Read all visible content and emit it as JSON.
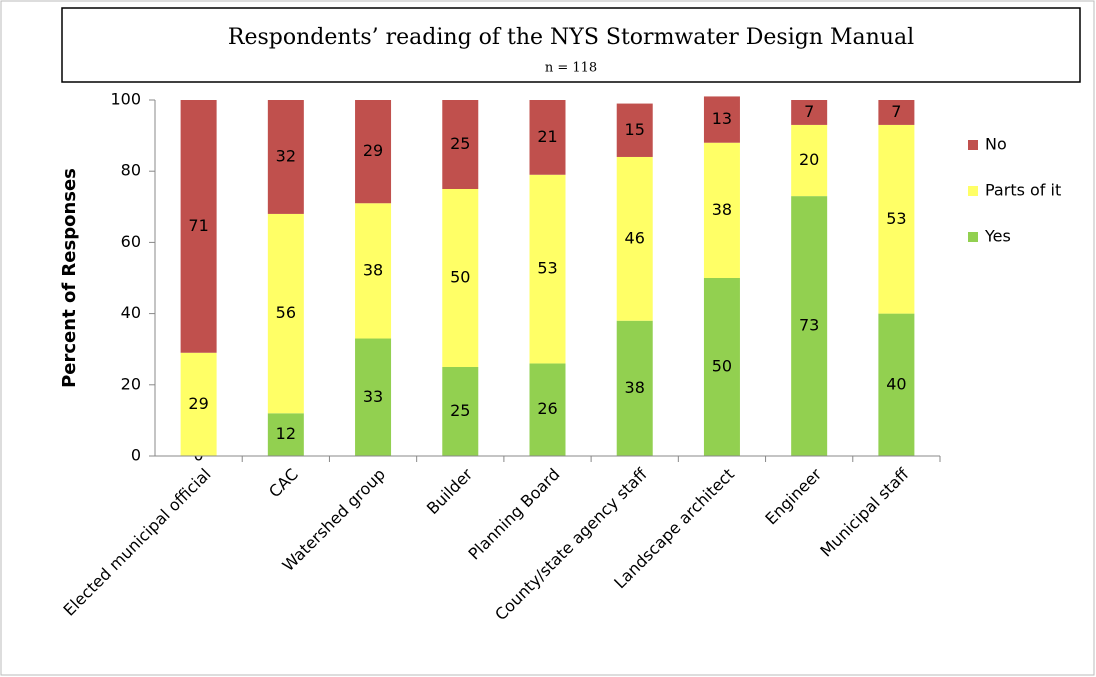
{
  "chart_data": {
    "type": "stacked_bar",
    "title": "Respondents’ reading of the NYS Stormwater Design Manual",
    "subtitle": "n = 118",
    "y_label": "Percent of Responses",
    "categories": [
      "Elected municipal official",
      "CAC",
      "Watershed group",
      "Builder",
      "Planning Board",
      "County/state agency staff",
      "Landscape architect",
      "Engineer",
      "Municipal staff"
    ],
    "series": [
      {
        "name": "Yes",
        "color": "#92d050",
        "values": [
          0,
          12,
          33,
          25,
          26,
          38,
          50,
          73,
          40
        ]
      },
      {
        "name": "Parts of it",
        "color": "#ffff66",
        "values": [
          29,
          56,
          38,
          50,
          53,
          46,
          38,
          20,
          53
        ]
      },
      {
        "name": "No",
        "color": "#c0504d",
        "values": [
          71,
          32,
          29,
          25,
          21,
          15,
          13,
          7,
          7
        ]
      }
    ],
    "ylim": [
      0,
      100
    ],
    "yticks": [
      0,
      20,
      40,
      60,
      80,
      100
    ],
    "grid": false,
    "legend": "right"
  }
}
